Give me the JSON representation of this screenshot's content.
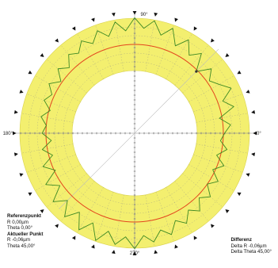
{
  "colors": {
    "band": "#f3ef6f",
    "band_stroke": "#d9d24a",
    "reference_circle": "#e4471e",
    "profile": "#3f8a24",
    "grid": "#9a9a86",
    "marker": "#111111"
  },
  "info": {
    "reference": {
      "heading": "Referenzpunkt",
      "r": "R 0,00µm",
      "theta": "Theta 0,00°"
    },
    "current": {
      "heading": "Aktueller Punkt",
      "r": "R -0,06µm",
      "theta": "Theta 45,00°"
    },
    "difference": {
      "heading": "Differenz",
      "delta_r": "Delta R -0,06µm",
      "delta_theta": "Delta Theta 45,00°"
    }
  },
  "chart_data": {
    "type": "polar-line",
    "angle_labels": [
      {
        "angle": 0,
        "text": "0°"
      },
      {
        "angle": 90,
        "text": "90°"
      },
      {
        "angle": 180,
        "text": "180°"
      },
      {
        "angle": 270,
        "text": "270°"
      }
    ],
    "marker_count": 36,
    "spoke_step_deg": 10,
    "ring_count": 5,
    "reference_radius": 0,
    "current_point": {
      "theta": 45,
      "r": -0.06
    },
    "profile": [
      {
        "theta": 0,
        "r": 0.05
      },
      {
        "theta": 5,
        "r": 0.3
      },
      {
        "theta": 10,
        "r": -0.1
      },
      {
        "theta": 15,
        "r": 0.55
      },
      {
        "theta": 20,
        "r": 0.2
      },
      {
        "theta": 25,
        "r": 0.7
      },
      {
        "theta": 30,
        "r": 0.35
      },
      {
        "theta": 35,
        "r": 0.1
      },
      {
        "theta": 40,
        "r": 0.45
      },
      {
        "theta": 45,
        "r": -0.06
      },
      {
        "theta": 50,
        "r": 0.6
      },
      {
        "theta": 55,
        "r": 0.25
      },
      {
        "theta": 60,
        "r": 0.75
      },
      {
        "theta": 65,
        "r": 0.3
      },
      {
        "theta": 70,
        "r": 0.9
      },
      {
        "theta": 75,
        "r": 0.5
      },
      {
        "theta": 80,
        "r": 1.0
      },
      {
        "theta": 85,
        "r": 0.65
      },
      {
        "theta": 90,
        "r": 1.05
      },
      {
        "theta": 95,
        "r": 0.55
      },
      {
        "theta": 100,
        "r": 0.95
      },
      {
        "theta": 105,
        "r": 0.45
      },
      {
        "theta": 110,
        "r": 0.8
      },
      {
        "theta": 115,
        "r": 0.4
      },
      {
        "theta": 120,
        "r": 0.7
      },
      {
        "theta": 125,
        "r": 0.35
      },
      {
        "theta": 130,
        "r": 0.55
      },
      {
        "theta": 135,
        "r": 0.15
      },
      {
        "theta": 140,
        "r": 0.45
      },
      {
        "theta": 145,
        "r": 0.05
      },
      {
        "theta": 150,
        "r": 0.4
      },
      {
        "theta": 155,
        "r": 0.1
      },
      {
        "theta": 160,
        "r": 0.3
      },
      {
        "theta": 165,
        "r": -0.05
      },
      {
        "theta": 170,
        "r": 0.25
      },
      {
        "theta": 175,
        "r": 0.0
      },
      {
        "theta": 180,
        "r": 0.15
      },
      {
        "theta": 185,
        "r": -0.2
      },
      {
        "theta": 190,
        "r": 0.2
      },
      {
        "theta": 195,
        "r": -0.15
      },
      {
        "theta": 200,
        "r": 0.35
      },
      {
        "theta": 205,
        "r": -0.05
      },
      {
        "theta": 210,
        "r": 0.55
      },
      {
        "theta": 215,
        "r": 0.1
      },
      {
        "theta": 220,
        "r": 0.7
      },
      {
        "theta": 225,
        "r": 0.25
      },
      {
        "theta": 230,
        "r": 0.8
      },
      {
        "theta": 235,
        "r": 0.3
      },
      {
        "theta": 240,
        "r": 0.9
      },
      {
        "theta": 245,
        "r": 0.4
      },
      {
        "theta": 250,
        "r": 1.0
      },
      {
        "theta": 255,
        "r": 0.5
      },
      {
        "theta": 260,
        "r": 0.95
      },
      {
        "theta": 265,
        "r": 0.6
      },
      {
        "theta": 270,
        "r": 1.05
      },
      {
        "theta": 275,
        "r": 0.55
      },
      {
        "theta": 280,
        "r": 0.85
      },
      {
        "theta": 285,
        "r": 0.45
      },
      {
        "theta": 290,
        "r": 0.75
      },
      {
        "theta": 295,
        "r": 0.3
      },
      {
        "theta": 300,
        "r": 0.6
      },
      {
        "theta": 305,
        "r": 0.2
      },
      {
        "theta": 310,
        "r": 0.5
      },
      {
        "theta": 315,
        "r": 0.1
      },
      {
        "theta": 320,
        "r": 0.4
      },
      {
        "theta": 325,
        "r": 0.0
      },
      {
        "theta": 330,
        "r": 0.3
      },
      {
        "theta": 335,
        "r": -0.1
      },
      {
        "theta": 340,
        "r": 0.25
      },
      {
        "theta": 345,
        "r": -0.15
      },
      {
        "theta": 350,
        "r": 0.2
      },
      {
        "theta": 355,
        "r": -0.1
      }
    ]
  }
}
